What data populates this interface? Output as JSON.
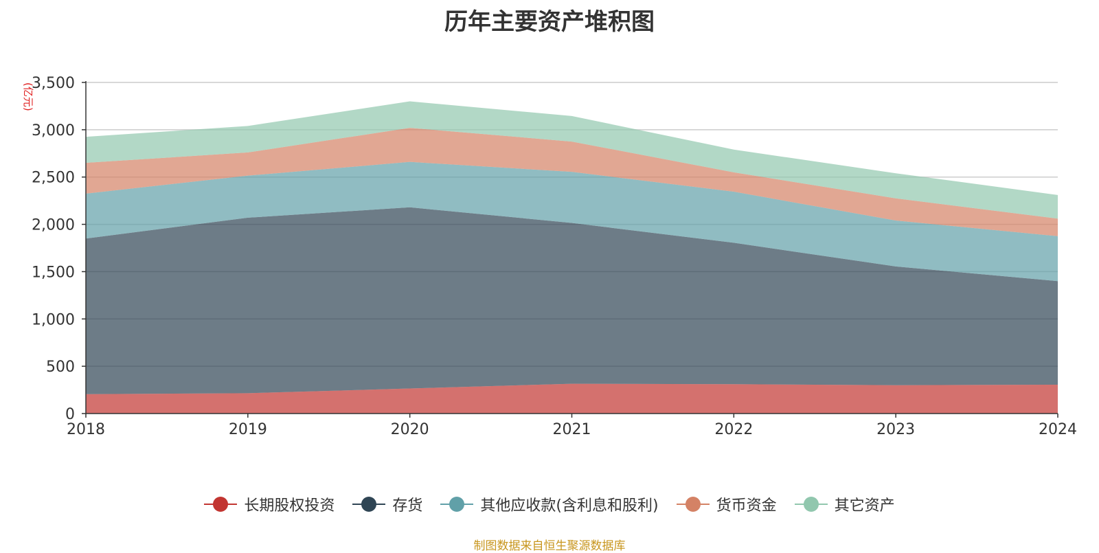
{
  "chart_data": {
    "type": "area",
    "stacked": true,
    "title": "历年主要资产堆积图",
    "ylabel": "亿元",
    "xlabel": "",
    "categories": [
      "2018",
      "2019",
      "2020",
      "2021",
      "2022",
      "2023",
      "2024"
    ],
    "ylim": [
      0,
      3500
    ],
    "yticks": [
      0,
      500,
      1000,
      1500,
      2000,
      2500,
      3000,
      3500
    ],
    "ytick_labels": [
      "0",
      "500",
      "1,000",
      "1,500",
      "2,000",
      "2,500",
      "3,000",
      "3,500"
    ],
    "grid": true,
    "legend_position": "bottom",
    "series": [
      {
        "name": "长期股权投资",
        "color": "#c23531",
        "values": [
          205,
          215,
          265,
          315,
          310,
          300,
          305
        ]
      },
      {
        "name": "存货",
        "color": "#2f4554",
        "values": [
          1645,
          1855,
          1915,
          1700,
          1495,
          1255,
          1095
        ]
      },
      {
        "name": "其他应收款(含利息和股利)",
        "color": "#61a0a8",
        "values": [
          475,
          445,
          480,
          540,
          540,
          485,
          475
        ]
      },
      {
        "name": "货币资金",
        "color": "#d48265",
        "values": [
          325,
          245,
          360,
          320,
          205,
          235,
          185
        ]
      },
      {
        "name": "其它资产",
        "color": "#91c7ae",
        "values": [
          275,
          280,
          280,
          270,
          240,
          265,
          250
        ]
      }
    ],
    "source": "制图数据来自恒生聚源数据库"
  }
}
